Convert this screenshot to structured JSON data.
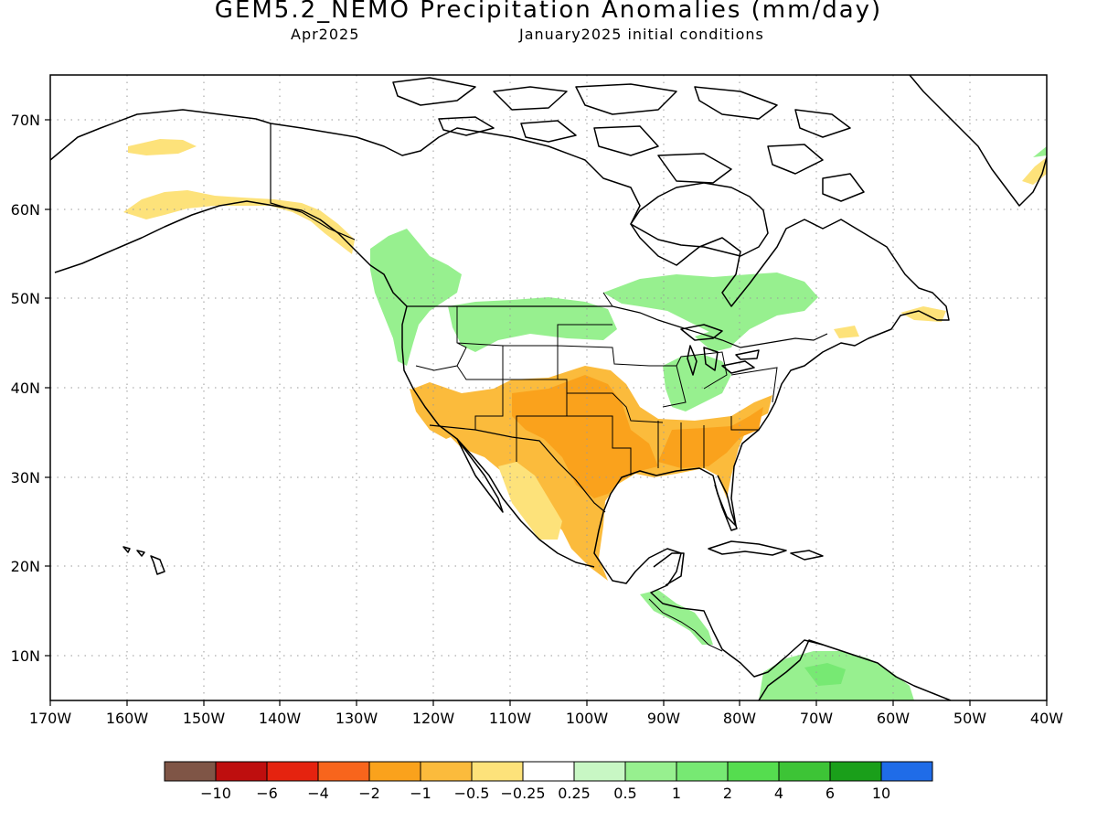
{
  "title": "GEM5.2_NEMO Precipitation Anomalies (mm/day)",
  "subtitle_left": "Apr2025",
  "subtitle_right": "January2025 initial conditions",
  "map": {
    "projection": "cylindrical",
    "lon_range": [
      -170,
      -40
    ],
    "lat_range": [
      5,
      75
    ],
    "lon_ticks": [
      "170W",
      "160W",
      "150W",
      "140W",
      "130W",
      "120W",
      "110W",
      "100W",
      "90W",
      "80W",
      "70W",
      "60W",
      "50W",
      "40W"
    ],
    "lat_ticks": [
      "10N",
      "20N",
      "30N",
      "40N",
      "50N",
      "60N",
      "70N"
    ],
    "grid": "dotted",
    "land_color": "#ffffff",
    "coast_color": "#000000"
  },
  "colorbar": {
    "colors": [
      "#7f5546",
      "#be0e0e",
      "#e5230f",
      "#f8651c",
      "#faa21c",
      "#fbbb3c",
      "#fde27a",
      "#ffffff",
      "#c8f7c4",
      "#97f08f",
      "#77e973",
      "#55dd4f",
      "#3dc436",
      "#1a9f1a",
      "#1f6ce8"
    ],
    "labels": [
      "−10",
      "−6",
      "−4",
      "−2",
      "−1",
      "−0.5",
      "−0.25",
      "0.25",
      "0.5",
      "1",
      "2",
      "4",
      "6",
      "10"
    ]
  },
  "anomaly_regions": [
    {
      "name": "south-central-us-dry",
      "color": "#fbbb3c"
    },
    {
      "name": "southeast-us-dry",
      "color": "#fbbb3c"
    },
    {
      "name": "southern-plains-core",
      "color": "#faa21c"
    },
    {
      "name": "mexico-dry",
      "color": "#fbbb3c"
    },
    {
      "name": "southwest-dry",
      "color": "#fde27a"
    },
    {
      "name": "alaska-coast-dry",
      "color": "#fde27a"
    },
    {
      "name": "alaska-north-dry",
      "color": "#fde27a"
    },
    {
      "name": "pacific-northwest-wet",
      "color": "#97f08f"
    },
    {
      "name": "northern-plains-wet",
      "color": "#97f08f"
    },
    {
      "name": "ohio-valley-wet",
      "color": "#97f08f"
    },
    {
      "name": "central-canada-wet",
      "color": "#97f08f"
    },
    {
      "name": "central-america-wet",
      "color": "#97f08f"
    },
    {
      "name": "south-america-wet",
      "color": "#97f08f"
    },
    {
      "name": "maritimes-dry",
      "color": "#fde27a"
    }
  ]
}
